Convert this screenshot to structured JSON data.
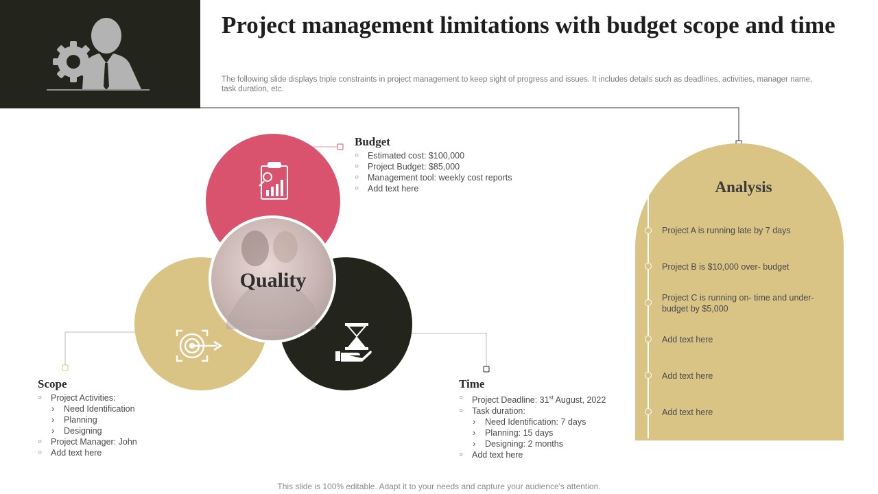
{
  "title": "Project management limitations with budget scope and time",
  "subtitle": "The following slide displays triple constraints in project management to keep sight of progress and issues. It includes details such as deadlines, activities, manager name, task duration, etc.",
  "colors": {
    "dark": "#23241b",
    "pink": "#d9536f",
    "gold": "#d9c385"
  },
  "icons": {
    "header": "businessman-gear-icon",
    "budget": "budget-report-icon",
    "scope": "target-icon",
    "time": "hourglass-hand-icon"
  },
  "budget": {
    "title": "Budget",
    "items": [
      "Estimated cost: $100,000",
      "Project Budget: $85,000",
      "Management  tool:  weekly cost reports",
      "Add text here"
    ]
  },
  "quality": {
    "label": "Quality"
  },
  "scope": {
    "title": "Scope",
    "items": {
      "activities": "Project Activities:",
      "sub": [
        "Need Identification",
        "Planning",
        "Designing"
      ],
      "manager": "Project Manager:  John",
      "add": "Add text here"
    }
  },
  "time": {
    "title": "Time",
    "items": {
      "deadline_prefix": "Project Deadline:  31",
      "deadline_sup": "st",
      "deadline_suffix": " August, 2022",
      "duration": "Task duration:",
      "sub": [
        "Need Identification:  7 days",
        "Planning:  15 days",
        "Designing:  2 months"
      ],
      "add": "Add text here"
    }
  },
  "analysis": {
    "title": "Analysis",
    "items": [
      "Project A is running  late by 7 days",
      "Project B is $10,000 over-  budget",
      "Project C is running on- time and under- budget  by $5,000",
      "Add text here",
      "Add text here",
      "Add text here"
    ]
  },
  "footer": "This slide is 100% editable. Adapt it to your needs and capture your audience's attention."
}
